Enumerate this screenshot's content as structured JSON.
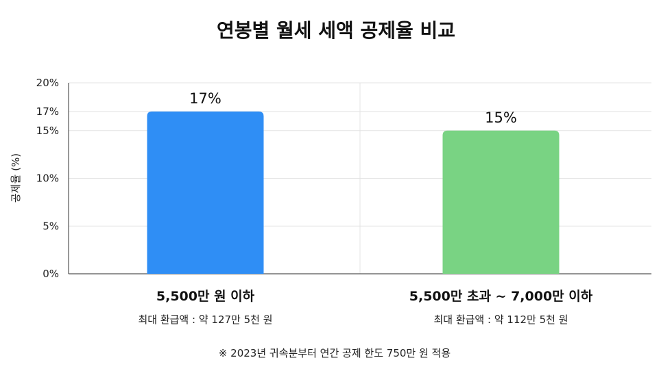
{
  "chart_data": {
    "type": "bar",
    "title": "연봉별 월세 세액 공제율 비교",
    "ylabel": "공제율 (%)",
    "xlabel": "",
    "ylim": [
      0,
      20
    ],
    "yticks": [
      "0%",
      "5%",
      "10%",
      "15%",
      "17%",
      "20%"
    ],
    "ytick_values": [
      0,
      5,
      10,
      15,
      17,
      20
    ],
    "categories": [
      "5,500만 원 이하",
      "5,500만 초과 ~ 7,000만 이하"
    ],
    "values": [
      17,
      15
    ],
    "value_labels": [
      "17%",
      "15%"
    ],
    "sublabels": [
      "최대 환급액 : 약 127만 5천 원",
      "최대 환급액 : 약 112만 5천 원"
    ],
    "colors": [
      "#2f8ef5",
      "#79d383"
    ],
    "grid": true,
    "footnote": "※ 2023년 귀속분부터 연간 공제 한도 750만 원 적용"
  }
}
